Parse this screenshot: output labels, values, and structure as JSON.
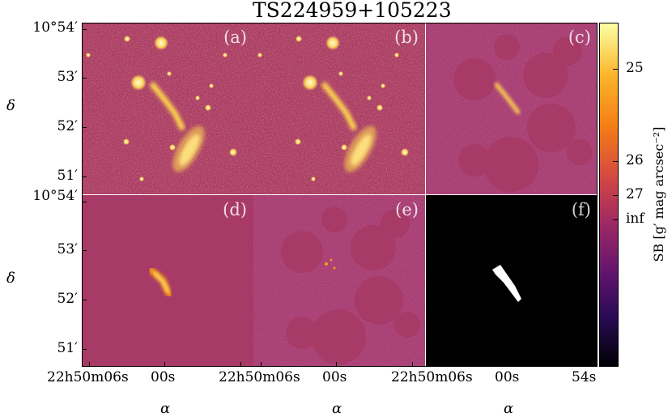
{
  "figure": {
    "title": "TS224959+105223",
    "panels": [
      {
        "label": "(a)",
        "content": "original image"
      },
      {
        "label": "(b)",
        "content": "model image"
      },
      {
        "label": "(c)",
        "content": "masked residual"
      },
      {
        "label": "(d)",
        "content": "target model"
      },
      {
        "label": "(e)",
        "content": "masked residual"
      },
      {
        "label": "(f)",
        "content": "target mask"
      }
    ],
    "y_axis": {
      "label": "δ",
      "ticks_top": [
        "10°54′",
        "53′",
        "52′",
        "51′"
      ],
      "ticks_bottom": [
        "10°54′",
        "53′",
        "52′",
        "51′"
      ]
    },
    "x_axis": {
      "label": "α",
      "ticks_left": [
        "22h50m06s",
        "00s"
      ],
      "ticks_mid": [
        "22h50m06s",
        "00s"
      ],
      "ticks_right": [
        "22h50m06s",
        "00s",
        "54s"
      ]
    },
    "colorbar": {
      "label": "SB [g′ mag arcsec⁻²]",
      "ticks": [
        "25",
        "26",
        "27",
        "inf"
      ],
      "colormap": "inferno",
      "colors": {
        "bright": "#fcffa4",
        "mid": "#b23a63",
        "dark": "#000004"
      }
    },
    "label_color": "#ffffff",
    "background_color": "#a83a67"
  }
}
